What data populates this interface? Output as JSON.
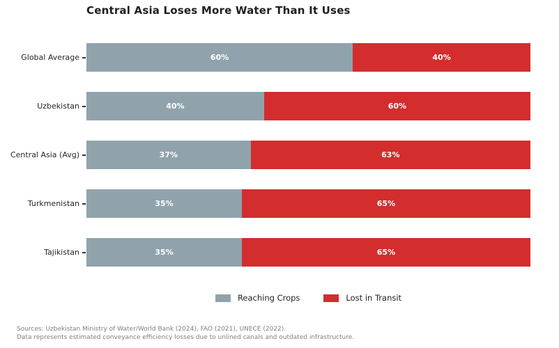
{
  "title": "Central Asia Loses More Water Than It Uses",
  "chart_data": {
    "type": "bar",
    "orientation": "horizontal",
    "stacked": true,
    "categories": [
      "Global Average",
      "Uzbekistan",
      "Central Asia (Avg)",
      "Turkmenistan",
      "Tajikistan"
    ],
    "series": [
      {
        "name": "Reaching Crops",
        "color": "#90a3ac",
        "values": [
          60,
          40,
          37,
          35,
          35
        ]
      },
      {
        "name": "Lost in Transit",
        "color": "#d32d2e",
        "values": [
          40,
          60,
          63,
          65,
          65
        ]
      }
    ],
    "value_suffix": "%",
    "xlim": [
      0,
      100
    ],
    "grid": false,
    "legend_position": "bottom",
    "bar_label_color": "#ffffff"
  },
  "footer": {
    "line1": "Sources: Uzbekistan Ministry of Water/World Bank (2024), FAO (2021), UNECE (2022).",
    "line2": "Data represents estimated conveyance efficiency losses due to unlined canals and outdated infrastructure."
  }
}
